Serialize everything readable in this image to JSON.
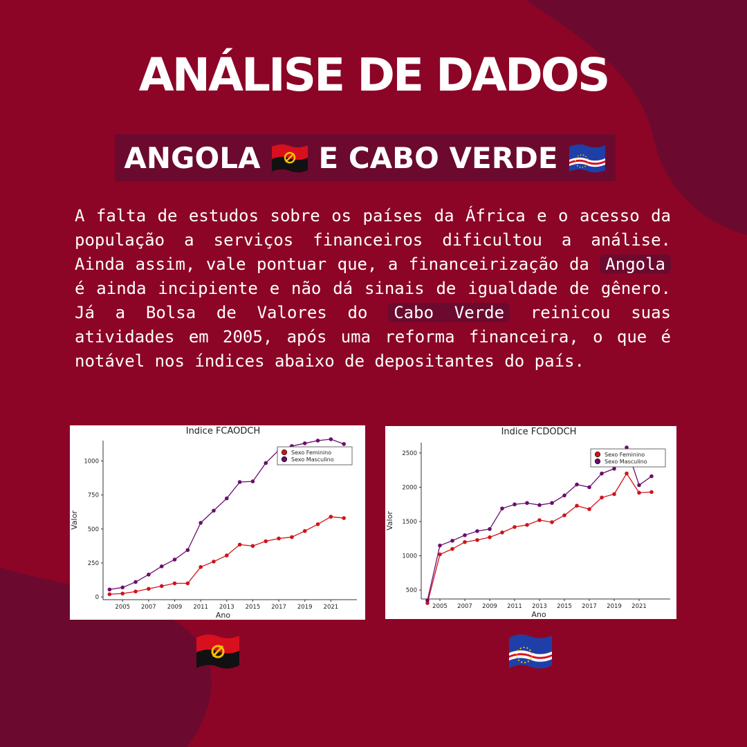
{
  "title": "ANÁLISE DE DADOS",
  "subtitle": {
    "part1": "ANGOLA",
    "part2": "E CABO VERDE"
  },
  "body": {
    "p1": "A falta de estudos sobre os países da África e o acesso da população a serviços financeiros dificultou a análise. Ainda assim, vale pontuar que, a financeirização da",
    "hl1": "Angola",
    "p2": "é ainda incipiente e não dá sinais de igualdade de gênero. Já a Bolsa de Valores do",
    "hl2": "Cabo Verde",
    "p3": "reinicou suas atividades em 2005, após uma reforma financeira, o que é notável nos índices abaixo de depositantes do país."
  },
  "colors": {
    "background": "#8c0526",
    "blob": "#6b0a2e",
    "female": "#d0141b",
    "male": "#6b0d6e"
  },
  "chart_data": [
    {
      "type": "line",
      "title": "Indice FCAODCH",
      "xlabel": "Ano",
      "ylabel": "Valor",
      "x": [
        2004,
        2005,
        2006,
        2007,
        2008,
        2009,
        2010,
        2011,
        2012,
        2013,
        2014,
        2015,
        2016,
        2017,
        2018,
        2019,
        2020,
        2021,
        2022
      ],
      "xlim": [
        2003.5,
        2023
      ],
      "ylim": [
        -20,
        1150
      ],
      "xticks": [
        2005,
        2007,
        2009,
        2011,
        2013,
        2015,
        2017,
        2019,
        2021
      ],
      "yticks": [
        0,
        250,
        500,
        750,
        1000
      ],
      "legend_position": "top-right",
      "series": [
        {
          "name": "Sexo Feminino",
          "values": [
            20,
            25,
            40,
            60,
            80,
            100,
            100,
            220,
            260,
            305,
            385,
            375,
            410,
            430,
            440,
            485,
            535,
            590,
            580
          ]
        },
        {
          "name": "Sexo Masculino",
          "values": [
            55,
            70,
            110,
            165,
            225,
            275,
            345,
            545,
            635,
            725,
            845,
            850,
            985,
            1080,
            1110,
            1130,
            1150,
            1160,
            1125
          ]
        }
      ]
    },
    {
      "type": "line",
      "title": "Indice FCDODCH",
      "xlabel": "Ano",
      "ylabel": "Valor",
      "x": [
        2004,
        2005,
        2006,
        2007,
        2008,
        2009,
        2010,
        2011,
        2012,
        2013,
        2014,
        2015,
        2016,
        2017,
        2018,
        2019,
        2020,
        2021,
        2022
      ],
      "xlim": [
        2003.5,
        2023.5
      ],
      "ylim": [
        370,
        2650
      ],
      "xticks": [
        2005,
        2007,
        2009,
        2011,
        2013,
        2015,
        2017,
        2019,
        2021
      ],
      "yticks": [
        500,
        1000,
        1500,
        2000,
        2500
      ],
      "legend_position": "top-right",
      "series": [
        {
          "name": "Sexo Feminino",
          "values": [
            310,
            1020,
            1100,
            1200,
            1230,
            1270,
            1340,
            1420,
            1450,
            1520,
            1490,
            1590,
            1730,
            1680,
            1850,
            1900,
            2200,
            1920,
            1930
          ]
        },
        {
          "name": "Sexo Masculino",
          "values": [
            350,
            1150,
            1220,
            1300,
            1360,
            1390,
            1690,
            1750,
            1770,
            1740,
            1770,
            1880,
            2040,
            2000,
            2200,
            2270,
            2580,
            2030,
            2160
          ]
        }
      ]
    }
  ]
}
